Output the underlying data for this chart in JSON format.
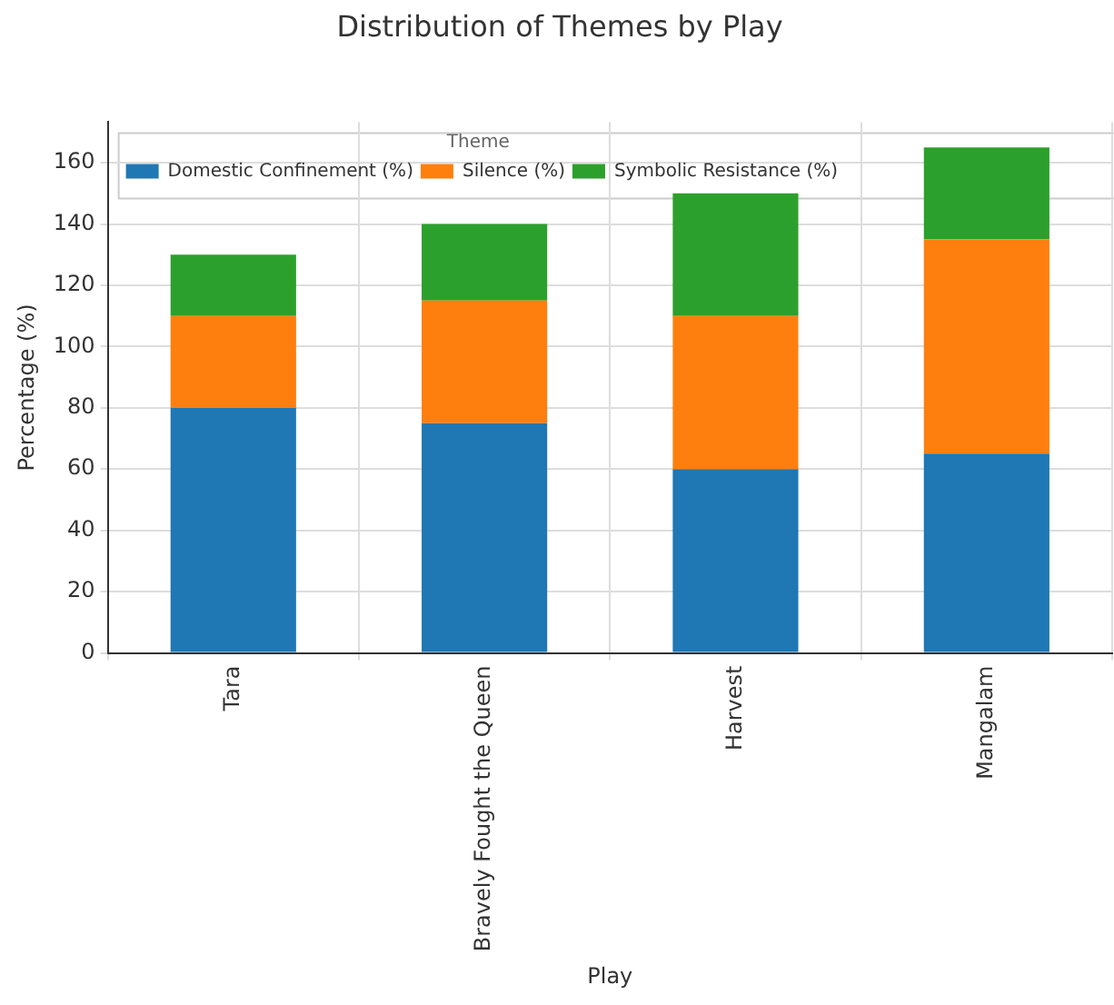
{
  "chart_data": {
    "type": "bar",
    "title": "Distribution of Themes by Play",
    "xlabel": "Play",
    "ylabel": "Percentage (%)",
    "legend_title": "Theme",
    "categories": [
      "Tara",
      "Bravely Fought the Queen",
      "Harvest",
      "Mangalam"
    ],
    "series": [
      {
        "name": "Domestic Confinement (%)",
        "color": "#1f77b4",
        "values": [
          80,
          75,
          60,
          65
        ]
      },
      {
        "name": "Silence (%)",
        "color": "#ff7f0e",
        "values": [
          30,
          40,
          50,
          70
        ]
      },
      {
        "name": "Symbolic Resistance (%)",
        "color": "#2ca02c",
        "values": [
          20,
          25,
          40,
          30
        ]
      }
    ],
    "stacked": true,
    "ylim": [
      0,
      173.25
    ],
    "yticks": [
      0,
      20,
      40,
      60,
      80,
      100,
      120,
      140,
      160
    ],
    "grid": true,
    "legend": "top left"
  }
}
